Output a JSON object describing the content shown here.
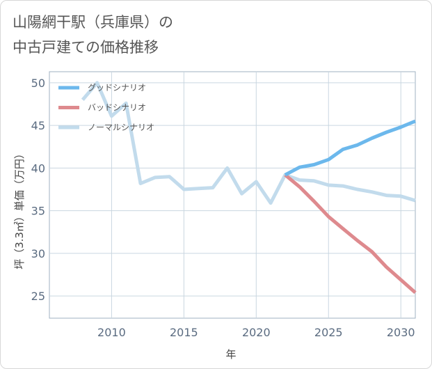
{
  "title": {
    "line1": "山陽網干駅（兵庫県）の",
    "line2": "中古戸建ての価格推移"
  },
  "chart_data": {
    "type": "line",
    "xlabel": "年",
    "ylabel": "坪（3.3㎡）単価（万円）",
    "xlim": [
      2005.7,
      2031
    ],
    "ylim": [
      22.4,
      51.3
    ],
    "xticks": [
      2010,
      2015,
      2020,
      2025,
      2030
    ],
    "yticks": [
      25,
      30,
      35,
      40,
      45,
      50
    ],
    "grid": true,
    "legend_position": "top-left",
    "series": [
      {
        "name": "グッドシナリオ",
        "color": "#6cb8ec",
        "x": [
          2022,
          2023,
          2024,
          2025,
          2026,
          2027,
          2028,
          2029,
          2030,
          2031
        ],
        "y": [
          39.2,
          40.1,
          40.4,
          41.0,
          42.2,
          42.7,
          43.5,
          44.2,
          44.8,
          45.5
        ]
      },
      {
        "name": "バッドシナリオ",
        "color": "#de8a8e",
        "x": [
          2022,
          2023,
          2024,
          2025,
          2026,
          2027,
          2028,
          2029,
          2030,
          2031
        ],
        "y": [
          39.2,
          37.8,
          36.1,
          34.3,
          32.9,
          31.5,
          30.2,
          28.4,
          26.9,
          25.4
        ]
      },
      {
        "name": "ノーマルシナリオ",
        "color": "#c2dbec",
        "x": [
          2008,
          2009,
          2010,
          2011,
          2012,
          2013,
          2014,
          2015,
          2016,
          2017,
          2018,
          2019,
          2020,
          2021,
          2022,
          2023,
          2024,
          2025,
          2026,
          2027,
          2028,
          2029,
          2030,
          2031
        ],
        "y": [
          48.0,
          50.0,
          46.1,
          47.6,
          38.2,
          38.9,
          39.0,
          37.5,
          37.6,
          37.7,
          40.0,
          37.0,
          38.4,
          35.9,
          39.2,
          38.6,
          38.5,
          38.0,
          37.9,
          37.5,
          37.2,
          36.8,
          36.7,
          36.2
        ]
      }
    ]
  }
}
